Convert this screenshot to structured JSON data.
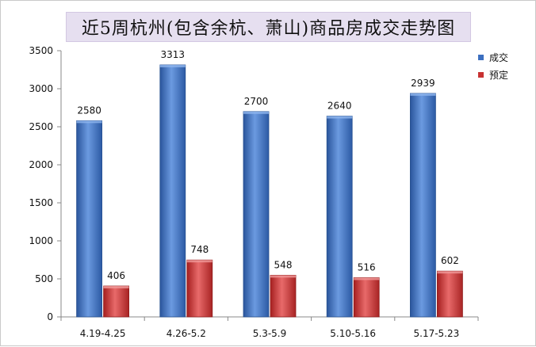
{
  "chart_data": {
    "type": "bar",
    "title": "近5周杭州(包含余杭、萧山)商品房成交走势图",
    "xlabel": "",
    "ylabel": "",
    "categories": [
      "4.19-4.25",
      "4.26-5.2",
      "5.3-5.9",
      "5.10-5.16",
      "5.17-5.23"
    ],
    "series": [
      {
        "name": "成交",
        "values": [
          2580,
          3313,
          2700,
          2640,
          2939
        ],
        "color": "#3c6fc0"
      },
      {
        "name": "预定",
        "values": [
          406,
          748,
          548,
          516,
          602
        ],
        "color": "#c83232"
      }
    ],
    "ylim": [
      0,
      3500
    ],
    "yticks": [
      0,
      500,
      1000,
      1500,
      2000,
      2500,
      3000,
      3500
    ],
    "grid": false,
    "legend": "top-right",
    "data_labels": true
  }
}
